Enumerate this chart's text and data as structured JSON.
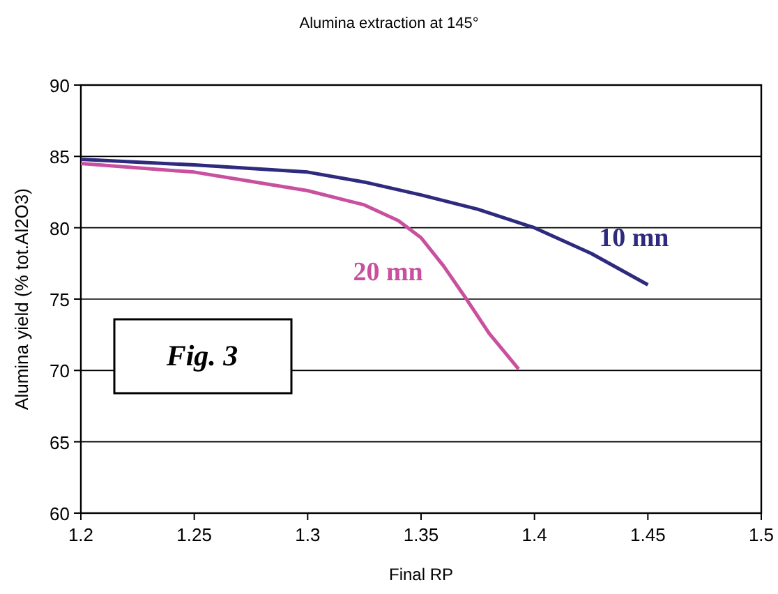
{
  "chart_data": {
    "type": "line",
    "title": "Alumina extraction at 145°",
    "xlabel": "Final RP",
    "ylabel": "Alumina yield (% tot.Al2O3)",
    "series": [
      {
        "name": "10 mn",
        "color": "#2e2a7e",
        "x": [
          1.2,
          1.25,
          1.3,
          1.325,
          1.35,
          1.375,
          1.4,
          1.425,
          1.45
        ],
        "values": [
          84.8,
          84.4,
          83.9,
          83.2,
          82.3,
          81.3,
          80.0,
          78.2,
          76.0
        ]
      },
      {
        "name": "20 mn",
        "color": "#c8509e",
        "x": [
          1.2,
          1.25,
          1.3,
          1.325,
          1.34,
          1.35,
          1.36,
          1.37,
          1.38,
          1.393
        ],
        "values": [
          84.5,
          83.9,
          82.6,
          81.6,
          80.5,
          79.3,
          77.3,
          75.0,
          72.6,
          70.1
        ]
      }
    ],
    "xlim": [
      1.2,
      1.5
    ],
    "xticks": [
      1.2,
      1.25,
      1.3,
      1.35,
      1.4,
      1.45,
      1.5
    ],
    "ylim": [
      60,
      90
    ],
    "yticks": [
      60,
      65,
      70,
      75,
      80,
      85,
      90
    ],
    "grid": "y",
    "marker": "none",
    "line_style": "solid",
    "annotations": [
      "Fig. 3"
    ]
  }
}
